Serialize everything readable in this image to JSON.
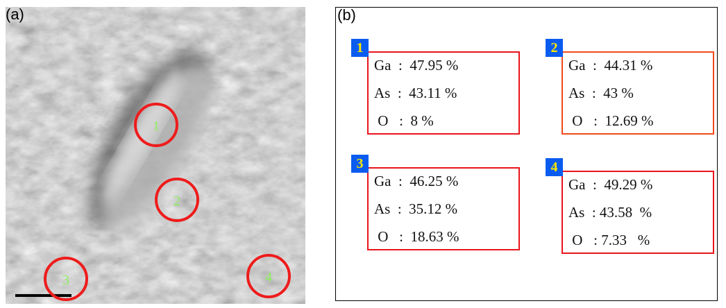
{
  "panel_a": {
    "label": "(a)",
    "markers": [
      "1",
      "2",
      "3",
      "4"
    ]
  },
  "panel_b": {
    "label": "(b)",
    "boxes": [
      {
        "number": "1",
        "rows": [
          "Ga  :  47.95 %",
          "As  :  43.11 %",
          " O   :  8 %"
        ]
      },
      {
        "number": "2",
        "rows": [
          "Ga  :  44.31 %",
          "As  :  43 %",
          " O   :  12.69 %"
        ]
      },
      {
        "number": "3",
        "rows": [
          "Ga  :  46.25 %",
          "As  :  35.12 %",
          " O   :  18.63 %"
        ]
      },
      {
        "number": "4",
        "rows": [
          "Ga  :  49.29 %",
          "As  : 43.58  %",
          " O   : 7.33   %"
        ]
      }
    ]
  }
}
